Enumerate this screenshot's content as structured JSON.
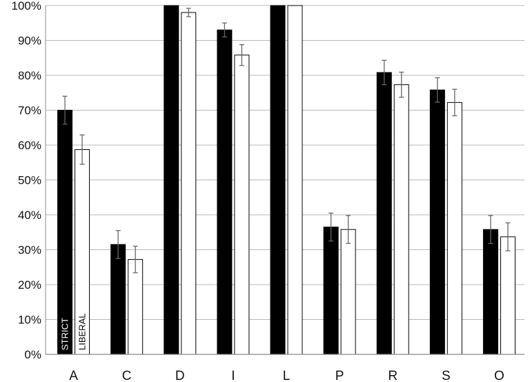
{
  "chart_data": {
    "type": "bar",
    "title": "",
    "xlabel": "",
    "ylabel": "",
    "ylim": [
      0,
      100
    ],
    "y_tick_format": "percent",
    "y_ticks": [
      0,
      10,
      20,
      30,
      40,
      50,
      60,
      70,
      80,
      90,
      100
    ],
    "grid": true,
    "categories": [
      "A",
      "C",
      "D",
      "I",
      "L",
      "P",
      "R",
      "S",
      "O"
    ],
    "series": [
      {
        "name": "STRICT",
        "color": "#000000",
        "values": [
          70,
          31.5,
          100,
          93,
          100,
          36.5,
          80.8,
          75.8,
          35.8
        ],
        "error": [
          4,
          4,
          0,
          2,
          0,
          4,
          3.5,
          3.5,
          4
        ]
      },
      {
        "name": "LIBERAL",
        "color": "#ffffff",
        "values": [
          58.7,
          27.2,
          98,
          85.8,
          100,
          35.8,
          77.3,
          72.2,
          33.7
        ],
        "error": [
          4.2,
          3.8,
          1.2,
          3,
          0,
          4,
          3.6,
          3.8,
          4
        ]
      }
    ],
    "legend": "inside-first-bars"
  }
}
